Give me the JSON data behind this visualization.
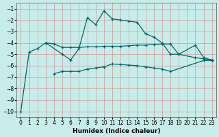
{
  "xlabel": "Humidex (Indice chaleur)",
  "background_color": "#c8ece9",
  "grid_color": "#cc9999",
  "line_color": "#006666",
  "ylim": [
    -10.5,
    -0.5
  ],
  "xlim": [
    -0.5,
    23.5
  ],
  "yticks": [
    -10,
    -9,
    -8,
    -7,
    -6,
    -5,
    -4,
    -3,
    -2,
    -1
  ],
  "xticks": [
    0,
    1,
    2,
    3,
    4,
    5,
    6,
    7,
    8,
    9,
    10,
    11,
    12,
    13,
    14,
    15,
    16,
    17,
    18,
    19,
    20,
    21,
    22,
    23
  ],
  "line1_x": [
    0,
    1,
    2,
    3,
    4,
    5,
    6,
    7,
    8,
    9,
    10,
    11,
    12,
    13,
    14,
    15,
    16,
    17,
    18,
    19,
    21,
    22,
    23
  ],
  "line1_y": [
    -10,
    -4.8,
    -4.5,
    -4.0,
    -4.1,
    -4.4,
    -4.4,
    -4.4,
    -4.35,
    -4.35,
    -4.3,
    -4.3,
    -4.3,
    -4.25,
    -4.2,
    -4.2,
    -4.15,
    -4.1,
    -4.1,
    -5.0,
    -5.3,
    -5.4,
    -5.5
  ],
  "line2_x": [
    3,
    5,
    6,
    7,
    8,
    9,
    10,
    11,
    12,
    13,
    14,
    15,
    16,
    17,
    18,
    19,
    21,
    22,
    23
  ],
  "line2_y": [
    -4.0,
    -5.0,
    -5.5,
    -4.5,
    -1.8,
    -2.4,
    -1.2,
    -1.9,
    -2.0,
    -2.1,
    -2.2,
    -3.2,
    -3.5,
    -4.0,
    -5.0,
    -5.0,
    -4.2,
    -5.3,
    -5.5
  ],
  "line3_x": [
    4,
    5,
    6,
    7,
    8,
    9,
    10,
    11,
    12,
    13,
    14,
    15,
    16,
    17,
    18,
    22,
    23
  ],
  "line3_y": [
    -6.7,
    -6.5,
    -6.5,
    -6.5,
    -6.3,
    -6.2,
    -6.1,
    -5.85,
    -5.9,
    -5.95,
    -6.0,
    -6.1,
    -6.2,
    -6.3,
    -6.5,
    -5.55,
    -5.55
  ]
}
